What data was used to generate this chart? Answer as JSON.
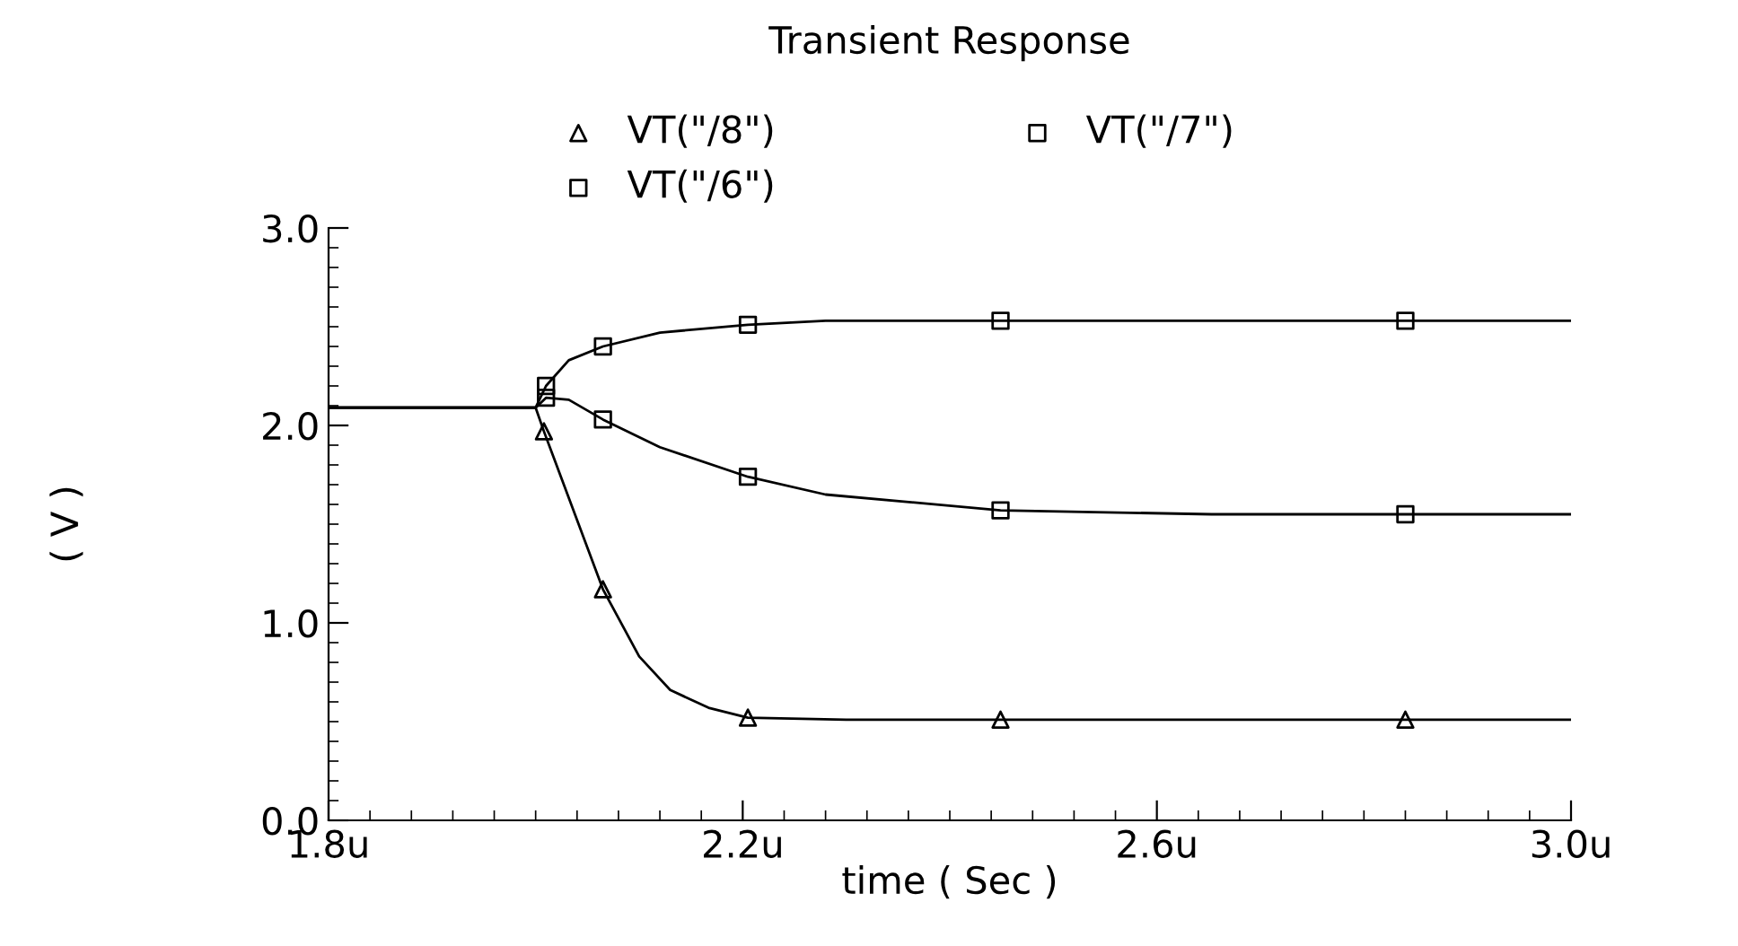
{
  "chart_data": {
    "type": "line",
    "title": "Transient Response",
    "xlabel": "time ( Sec )",
    "ylabel": "( V )",
    "xlim": [
      1.8,
      3.0
    ],
    "xticks": [
      {
        "value": 1.8,
        "label": "1.8u"
      },
      {
        "value": 2.2,
        "label": "2.2u"
      },
      {
        "value": 2.6,
        "label": "2.6u"
      },
      {
        "value": 3.0,
        "label": "3.0u"
      }
    ],
    "ylim": [
      0,
      3.0
    ],
    "yticks": [
      {
        "value": 0,
        "label": "0.0"
      },
      {
        "value": 1,
        "label": "1.0"
      },
      {
        "value": 2,
        "label": "2.0"
      },
      {
        "value": 3,
        "label": "3.0"
      }
    ],
    "grid": false,
    "legend": "top",
    "series": [
      {
        "color": "#000000",
        "marker": "none",
        "x": [
          1.8,
          2.0,
          2.008,
          2.065,
          2.1,
          2.13,
          2.167,
          2.205,
          2.3,
          3.0
        ],
        "values": [
          2.09,
          2.09,
          1.97,
          1.17,
          0.83,
          0.66,
          0.57,
          0.52,
          0.51,
          0.51
        ]
      },
      {
        "color": "#000000",
        "marker": "none",
        "x": [
          1.8,
          2.0,
          2.01,
          2.032,
          2.065,
          2.12,
          2.205,
          2.28,
          3.0
        ],
        "values": [
          2.09,
          2.09,
          2.2,
          2.33,
          2.4,
          2.47,
          2.51,
          2.53,
          2.53
        ]
      },
      {
        "color": "#000000",
        "marker": "none",
        "x": [
          1.8,
          2.0,
          2.01,
          2.032,
          2.065,
          2.12,
          2.205,
          2.28,
          2.449,
          2.653,
          3.0
        ],
        "values": [
          2.09,
          2.09,
          2.14,
          2.13,
          2.03,
          1.89,
          1.74,
          1.65,
          1.57,
          1.55,
          1.55
        ]
      },
      {
        "type": "scatter",
        "name": "VT(\"/8\")",
        "color": "#000000",
        "marker": "triangle",
        "x": [
          2.008,
          2.065,
          2.205,
          2.449,
          2.84
        ],
        "values": [
          1.97,
          1.17,
          0.52,
          0.51,
          0.51
        ]
      },
      {
        "type": "scatter",
        "name": "VT(\"/7\")",
        "color": "#000000",
        "marker": "square",
        "x": [
          2.01,
          2.065,
          2.205,
          2.449,
          2.84
        ],
        "values": [
          2.14,
          2.03,
          1.74,
          1.57,
          1.55
        ]
      },
      {
        "type": "scatter",
        "name": "VT(\"/6\")",
        "color": "#000000",
        "marker": "square",
        "x": [
          2.01,
          2.065,
          2.205,
          2.449,
          2.84
        ],
        "values": [
          2.2,
          2.4,
          2.51,
          2.53,
          2.53
        ]
      }
    ]
  }
}
